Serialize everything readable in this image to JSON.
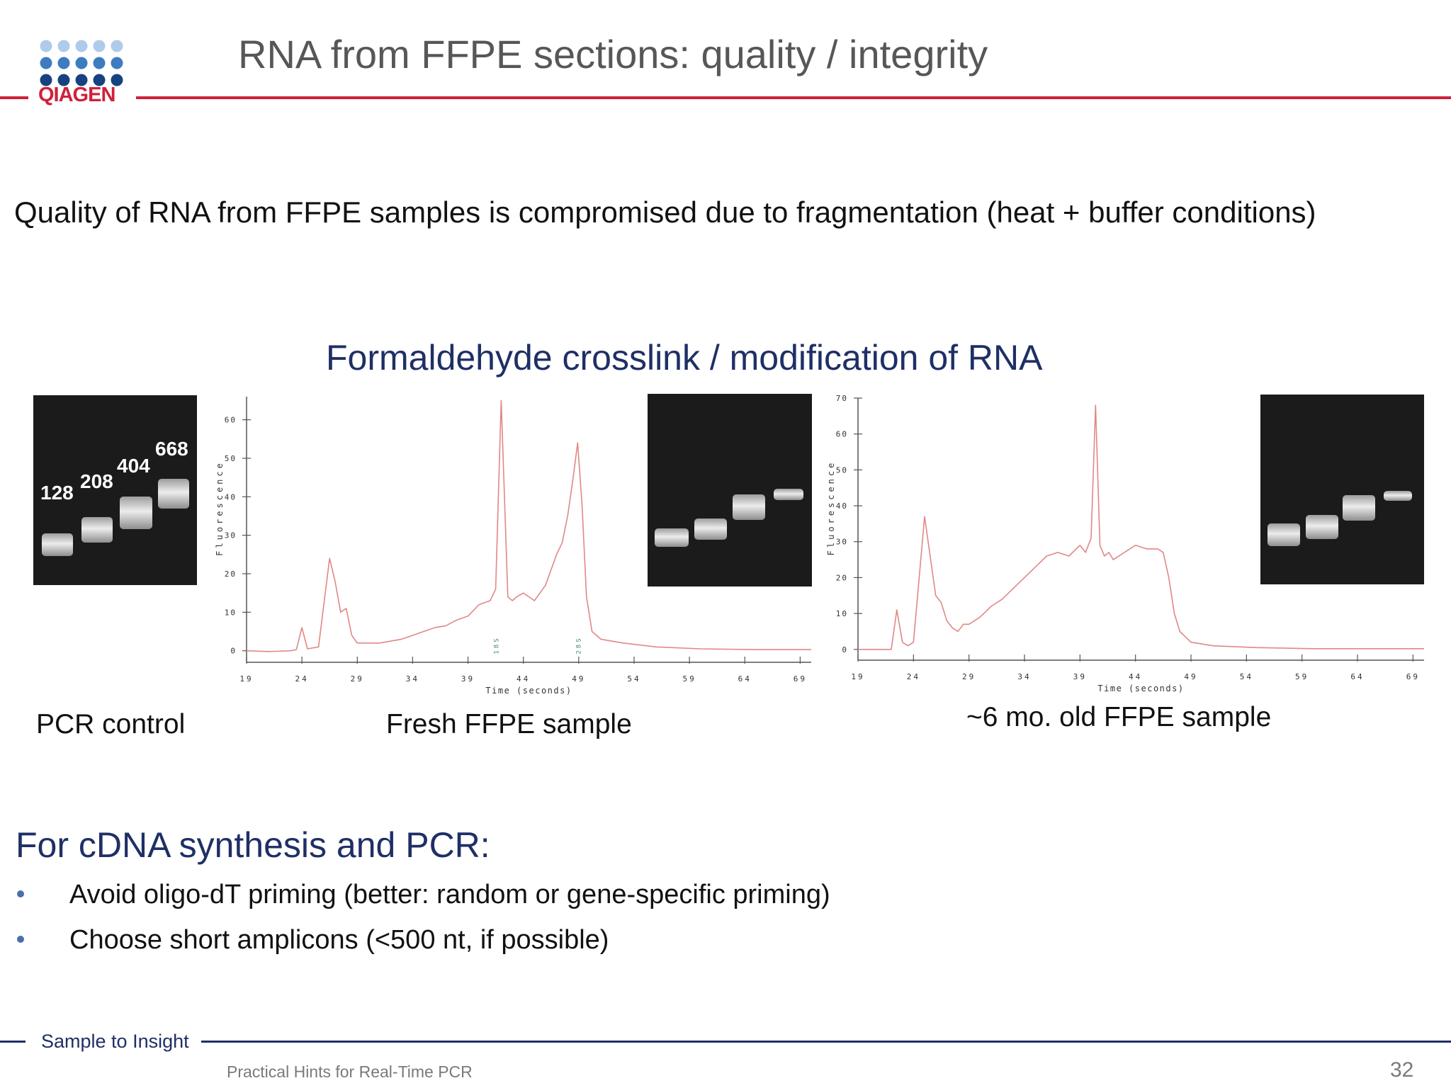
{
  "header": {
    "logo_text": "QIAGEN",
    "title": "RNA from FFPE sections: quality / integrity"
  },
  "statement": "Quality of RNA from FFPE samples is compromised due to fragmentation (heat + buffer conditions)",
  "figure_title": "Formaldehyde crosslink / modification of RNA",
  "pcr_gel": {
    "labels": [
      "128",
      "208",
      "404",
      "668"
    ]
  },
  "captions": {
    "pcr_control": "PCR control",
    "fresh": "Fresh FFPE sample",
    "old": "~6 mo. old FFPE sample"
  },
  "chart_data": [
    {
      "type": "line",
      "name": "fresh",
      "xlabel": "Time (seconds)",
      "ylabel": "Fluorescence",
      "xlim": [
        19,
        70
      ],
      "ylim": [
        -3,
        66
      ],
      "xticks": [
        19,
        24,
        29,
        34,
        39,
        44,
        49,
        54,
        59,
        64,
        69
      ],
      "yticks": [
        0,
        10,
        20,
        30,
        40,
        50,
        60
      ],
      "markers": [
        {
          "label": "18S",
          "x": 41.5
        },
        {
          "label": "28S",
          "x": 48.9
        }
      ],
      "series": [
        {
          "x": [
            19,
            21,
            23,
            23.5,
            24,
            24.5,
            25.5,
            26.5,
            27,
            27.5,
            28,
            28.5,
            29,
            31,
            33,
            34,
            35,
            36,
            37,
            38,
            39,
            40,
            41,
            41.5,
            42,
            42.6,
            43,
            43.4,
            44,
            45,
            46,
            47,
            47.5,
            48,
            48.5,
            48.9,
            49.3,
            49.7,
            50.2,
            51,
            53,
            56,
            60,
            65,
            70
          ],
          "y": [
            0,
            -0.2,
            0,
            0.3,
            6,
            0.5,
            1,
            24,
            18,
            10,
            11,
            4,
            2,
            2,
            3,
            4,
            5,
            6,
            6.5,
            8,
            9,
            12,
            13,
            16,
            65,
            14,
            13,
            14,
            15,
            13,
            17,
            25,
            28,
            35,
            45,
            54,
            38,
            14,
            5,
            3,
            2,
            1,
            0.5,
            0.3,
            0.3
          ]
        }
      ]
    },
    {
      "type": "line",
      "name": "old",
      "xlabel": "Time (seconds)",
      "ylabel": "Fluorescence",
      "xlim": [
        19,
        70
      ],
      "ylim": [
        -3,
        70
      ],
      "xticks": [
        19,
        24,
        29,
        34,
        39,
        44,
        49,
        54,
        59,
        64,
        69
      ],
      "yticks": [
        0,
        10,
        20,
        30,
        40,
        50,
        60,
        70
      ],
      "series": [
        {
          "x": [
            19,
            21,
            22,
            22.5,
            23,
            23.5,
            24,
            25,
            26,
            26.5,
            27,
            27.5,
            28,
            28.5,
            29,
            30,
            31,
            32,
            33,
            34,
            35,
            36,
            37,
            38,
            39,
            39.5,
            40,
            40.4,
            40.8,
            41.2,
            41.6,
            42,
            43,
            44,
            45,
            46,
            46.5,
            47,
            47.5,
            48,
            49,
            51,
            55,
            60,
            65,
            70
          ],
          "y": [
            0,
            0,
            0,
            11,
            2,
            1,
            2,
            37,
            15,
            13,
            8,
            6,
            5,
            7,
            7,
            9,
            12,
            14,
            17,
            20,
            23,
            26,
            27,
            26,
            29,
            27,
            31,
            68,
            29,
            26,
            27,
            25,
            27,
            29,
            28,
            28,
            27,
            20,
            10,
            5,
            2,
            1,
            0.5,
            0.2,
            0.2,
            0.2
          ]
        }
      ]
    }
  ],
  "cdna_section": {
    "heading": "For cDNA synthesis and PCR:",
    "bullets": [
      "Avoid oligo-dT priming (better: random or gene-specific priming)",
      "Choose short amplicons (<500 nt, if possible)"
    ]
  },
  "footer": {
    "brand": "Sample to Insight",
    "course": "Practical Hints for Real-Time PCR",
    "page_number": "32"
  },
  "colors": {
    "brand_red": "#d1203a",
    "navy": "#1f2f66",
    "trace": "#e08886"
  }
}
